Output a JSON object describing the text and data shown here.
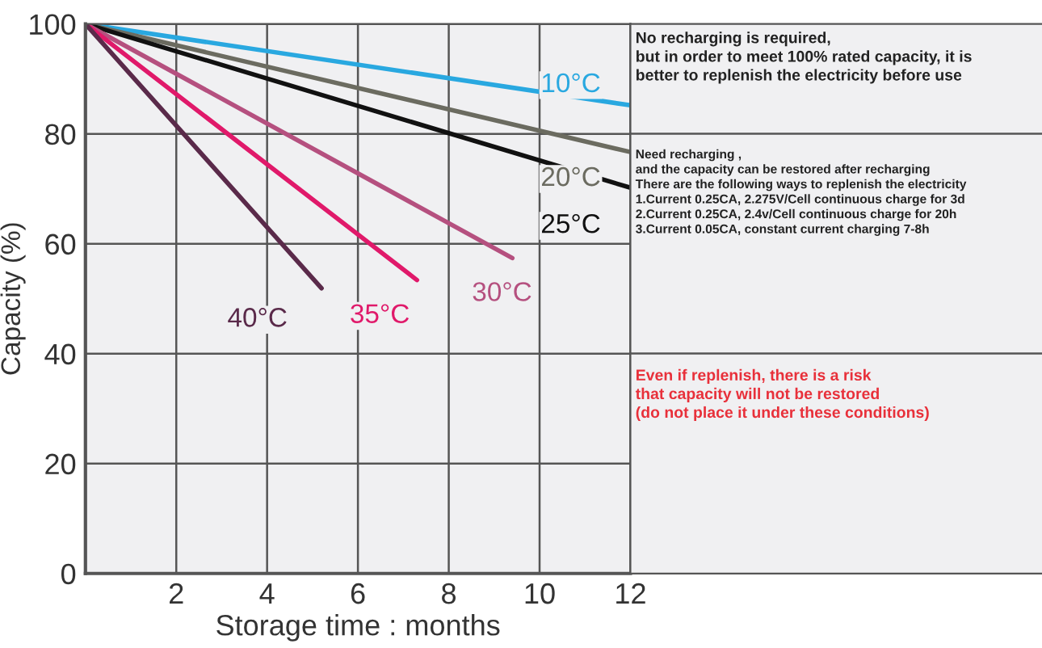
{
  "chart_data": [
    {
      "type": "line",
      "xlabel": "Storage time : months",
      "ylabel": "Capacity (%)",
      "xlim": [
        0,
        12
      ],
      "ylim": [
        0,
        100
      ],
      "xticks": [
        2,
        4,
        6,
        8,
        10,
        12
      ],
      "yticks": [
        0,
        20,
        40,
        60,
        80,
        100
      ],
      "grid": true,
      "legend": false,
      "marker": "none",
      "line_style": "solid",
      "series": [
        {
          "name": "10°C",
          "color": "#29a8e0",
          "x": [
            0,
            12
          ],
          "values": [
            100,
            85.2
          ]
        },
        {
          "name": "20°C",
          "color": "#6b6b60",
          "x": [
            0,
            12
          ],
          "values": [
            100,
            76.7
          ]
        },
        {
          "name": "25°C",
          "color": "#111111",
          "x": [
            0,
            12
          ],
          "values": [
            100,
            70.2
          ]
        },
        {
          "name": "30°C",
          "color": "#b5507f",
          "x": [
            0,
            9.4
          ],
          "values": [
            100,
            57.4
          ]
        },
        {
          "name": "35°C",
          "color": "#e0196a",
          "x": [
            0,
            7.3
          ],
          "values": [
            100,
            53.4
          ]
        },
        {
          "name": "40°C",
          "color": "#5a2a4a",
          "x": [
            0,
            5.2
          ],
          "values": [
            100,
            51.9
          ]
        }
      ]
    },
    {
      "type": "other",
      "annotations": [
        "No recharging is required,\nbut in order to meet 100% rated capacity, it is\nbetter to replenish the electricity before use",
        "Need recharging ,\nand the capacity can be restored after recharging\nThere are the following ways to replenish the electricity\n1.Current 0.25CA, 2.275V/Cell continuous charge for 3d\n2.Current 0.25CA, 2.4v/Cell continuous charge for 20h\n3.Current 0.05CA, constant current charging 7-8h",
        "Even if replenish, there is a risk\nthat capacity will not be restored\n(do not place it under these conditions)"
      ]
    }
  ]
}
